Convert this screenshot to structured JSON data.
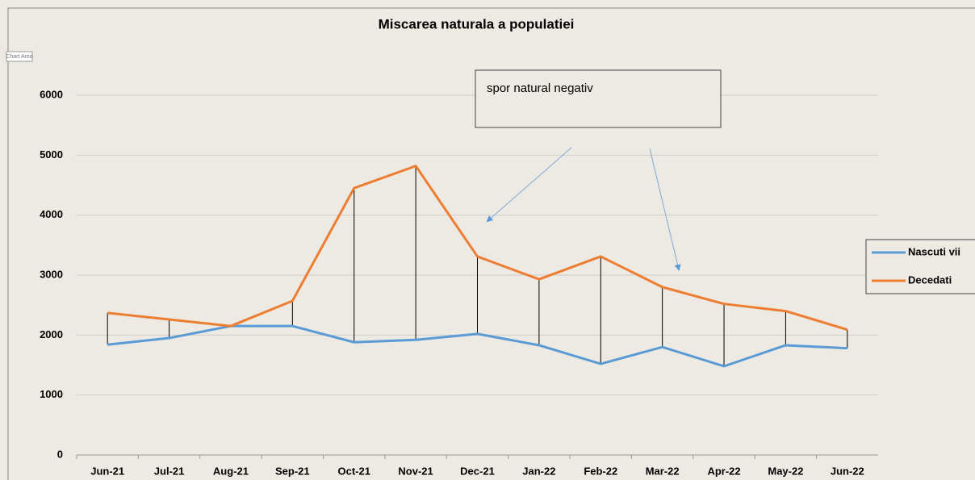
{
  "chart_data": {
    "type": "line",
    "title": "Miscarea naturala a populatiei",
    "categories": [
      "Jun-21",
      "Jul-21",
      "Aug-21",
      "Sep-21",
      "Oct-21",
      "Nov-21",
      "Dec-21",
      "Jan-22",
      "Feb-22",
      "Mar-22",
      "Apr-22",
      "May-22",
      "Jun-22"
    ],
    "series": [
      {
        "name": "Nascuti vii",
        "color": "#5b9bd5",
        "values": [
          1840,
          1950,
          2150,
          2150,
          1880,
          1920,
          2020,
          1830,
          1520,
          1800,
          1480,
          1830,
          1780
        ]
      },
      {
        "name": "Decedati",
        "color": "#ed7d31",
        "values": [
          2370,
          2260,
          2150,
          2570,
          4450,
          4820,
          3310,
          2930,
          3310,
          2800,
          2520,
          2400,
          2090
        ]
      }
    ],
    "ylim": [
      0,
      6000
    ],
    "yticks": [
      0,
      1000,
      2000,
      3000,
      4000,
      5000,
      6000
    ],
    "grid": true,
    "legend": "right",
    "high_low_lines": true,
    "annotation": "spor natural negativ",
    "tooltip": "Chart Area"
  }
}
